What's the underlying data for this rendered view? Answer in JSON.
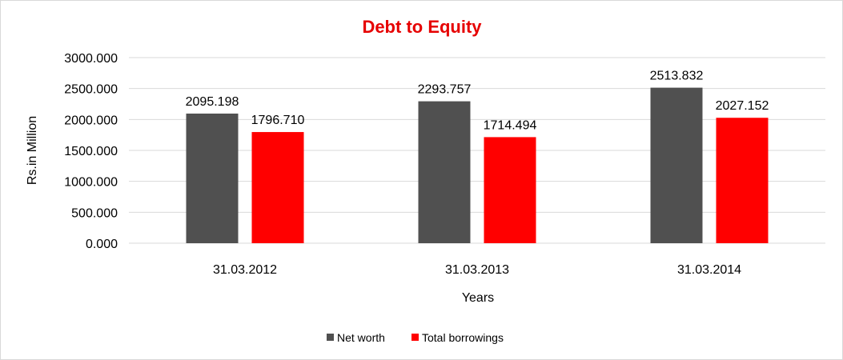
{
  "chart_data": {
    "type": "bar",
    "title": "Debt to Equity",
    "xlabel": "Years",
    "ylabel": "Rs.in Million",
    "categories": [
      "31.03.2012",
      "31.03.2013",
      "31.03.2014"
    ],
    "series": [
      {
        "name": "Net worth",
        "color": "#505050",
        "values": [
          2095.198,
          2293.757,
          2513.832
        ],
        "labels": [
          "2095.198",
          "2293.757",
          "2513.832"
        ]
      },
      {
        "name": "Total borrowings",
        "color": "#ff0000",
        "values": [
          1796.71,
          1714.494,
          2027.152
        ],
        "labels": [
          "1796.710",
          "1714.494",
          "2027.152"
        ]
      }
    ],
    "ylim": [
      0,
      3000
    ],
    "yticks": [
      0,
      500,
      1000,
      1500,
      2000,
      2500,
      3000
    ],
    "ytick_labels": [
      "0.000",
      "500.000",
      "1000.000",
      "1500.000",
      "2000.000",
      "2500.000",
      "3000.000"
    ],
    "grid": true,
    "legend_position": "bottom",
    "title_color": "#e60000",
    "grid_color": "#d9d9d9"
  }
}
